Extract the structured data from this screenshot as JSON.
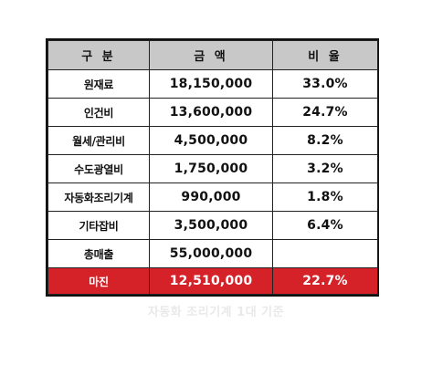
{
  "header": {
    "col1": "구 분",
    "col2": "금 액",
    "col3": "비 율"
  },
  "rows": [
    {
      "label": "원재료",
      "amount": "18,150,000",
      "ratio": "33.0%"
    },
    {
      "label": "인건비",
      "amount": "13,600,000",
      "ratio": "24.7%"
    },
    {
      "label": "월세/관리비",
      "amount": "4,500,000",
      "ratio": "8.2%"
    },
    {
      "label": "수도광열비",
      "amount": "1,750,000",
      "ratio": "3.2%"
    },
    {
      "label": "자동화조리기계",
      "amount": "990,000",
      "ratio": "1.8%"
    },
    {
      "label": "기타잡비",
      "amount": "3,500,000",
      "ratio": "6.4%"
    },
    {
      "label": "총매출",
      "amount": "55,000,000",
      "ratio": ""
    },
    {
      "label": "마진",
      "amount": "12,510,000",
      "ratio": "22.7%"
    }
  ],
  "caption": "자동화 조리기계 1대 기준",
  "colors": {
    "header_bg": "#c8c8c8",
    "highlight_bg": "#d52128",
    "highlight_text": "#ffffff",
    "caption_text": "#e9e9e9"
  }
}
